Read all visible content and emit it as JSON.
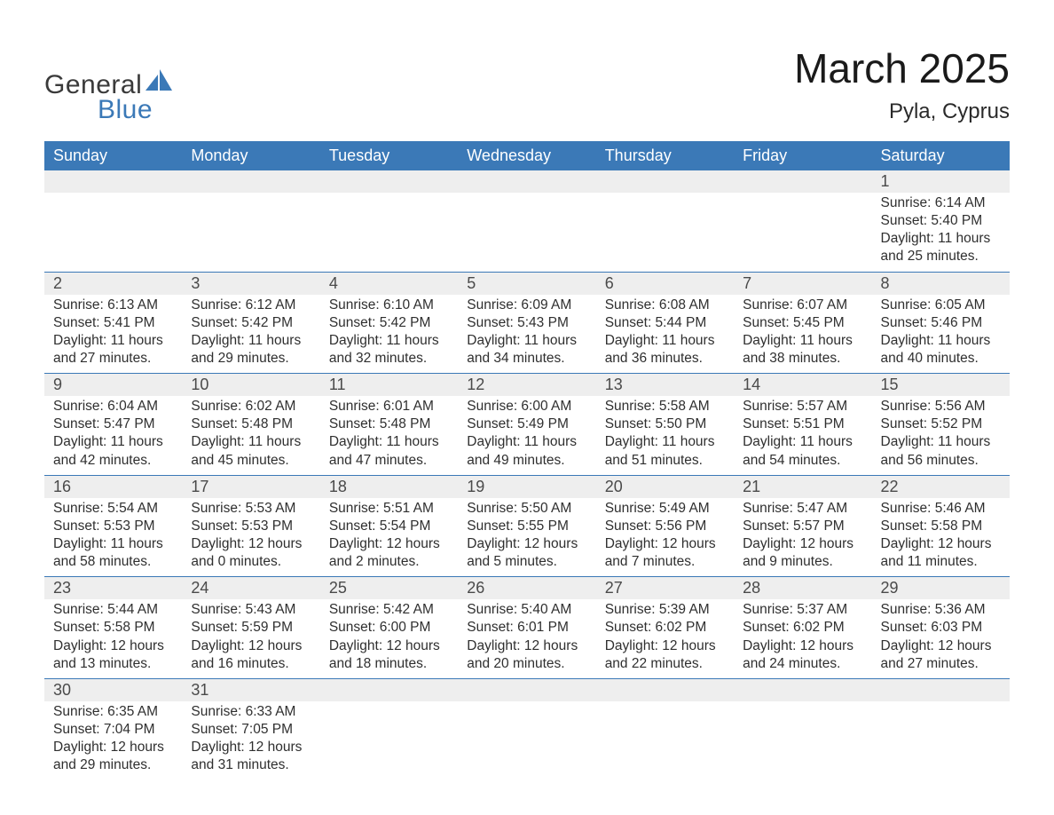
{
  "logo": {
    "general": "General",
    "blue": "Blue",
    "sail_color": "#3b79b7"
  },
  "title": "March 2025",
  "location": "Pyla, Cyprus",
  "colors": {
    "header_bg": "#3b79b7",
    "header_fg": "#ffffff",
    "daynum_bg": "#eeeeee",
    "row_border": "#3b79b7",
    "text": "#2f2f2f"
  },
  "day_headers": [
    "Sunday",
    "Monday",
    "Tuesday",
    "Wednesday",
    "Thursday",
    "Friday",
    "Saturday"
  ],
  "weeks": [
    [
      null,
      null,
      null,
      null,
      null,
      null,
      {
        "n": "1",
        "sunrise": "6:14 AM",
        "sunset": "5:40 PM",
        "dl1": "Daylight: 11 hours",
        "dl2": "and 25 minutes."
      }
    ],
    [
      {
        "n": "2",
        "sunrise": "6:13 AM",
        "sunset": "5:41 PM",
        "dl1": "Daylight: 11 hours",
        "dl2": "and 27 minutes."
      },
      {
        "n": "3",
        "sunrise": "6:12 AM",
        "sunset": "5:42 PM",
        "dl1": "Daylight: 11 hours",
        "dl2": "and 29 minutes."
      },
      {
        "n": "4",
        "sunrise": "6:10 AM",
        "sunset": "5:42 PM",
        "dl1": "Daylight: 11 hours",
        "dl2": "and 32 minutes."
      },
      {
        "n": "5",
        "sunrise": "6:09 AM",
        "sunset": "5:43 PM",
        "dl1": "Daylight: 11 hours",
        "dl2": "and 34 minutes."
      },
      {
        "n": "6",
        "sunrise": "6:08 AM",
        "sunset": "5:44 PM",
        "dl1": "Daylight: 11 hours",
        "dl2": "and 36 minutes."
      },
      {
        "n": "7",
        "sunrise": "6:07 AM",
        "sunset": "5:45 PM",
        "dl1": "Daylight: 11 hours",
        "dl2": "and 38 minutes."
      },
      {
        "n": "8",
        "sunrise": "6:05 AM",
        "sunset": "5:46 PM",
        "dl1": "Daylight: 11 hours",
        "dl2": "and 40 minutes."
      }
    ],
    [
      {
        "n": "9",
        "sunrise": "6:04 AM",
        "sunset": "5:47 PM",
        "dl1": "Daylight: 11 hours",
        "dl2": "and 42 minutes."
      },
      {
        "n": "10",
        "sunrise": "6:02 AM",
        "sunset": "5:48 PM",
        "dl1": "Daylight: 11 hours",
        "dl2": "and 45 minutes."
      },
      {
        "n": "11",
        "sunrise": "6:01 AM",
        "sunset": "5:48 PM",
        "dl1": "Daylight: 11 hours",
        "dl2": "and 47 minutes."
      },
      {
        "n": "12",
        "sunrise": "6:00 AM",
        "sunset": "5:49 PM",
        "dl1": "Daylight: 11 hours",
        "dl2": "and 49 minutes."
      },
      {
        "n": "13",
        "sunrise": "5:58 AM",
        "sunset": "5:50 PM",
        "dl1": "Daylight: 11 hours",
        "dl2": "and 51 minutes."
      },
      {
        "n": "14",
        "sunrise": "5:57 AM",
        "sunset": "5:51 PM",
        "dl1": "Daylight: 11 hours",
        "dl2": "and 54 minutes."
      },
      {
        "n": "15",
        "sunrise": "5:56 AM",
        "sunset": "5:52 PM",
        "dl1": "Daylight: 11 hours",
        "dl2": "and 56 minutes."
      }
    ],
    [
      {
        "n": "16",
        "sunrise": "5:54 AM",
        "sunset": "5:53 PM",
        "dl1": "Daylight: 11 hours",
        "dl2": "and 58 minutes."
      },
      {
        "n": "17",
        "sunrise": "5:53 AM",
        "sunset": "5:53 PM",
        "dl1": "Daylight: 12 hours",
        "dl2": "and 0 minutes."
      },
      {
        "n": "18",
        "sunrise": "5:51 AM",
        "sunset": "5:54 PM",
        "dl1": "Daylight: 12 hours",
        "dl2": "and 2 minutes."
      },
      {
        "n": "19",
        "sunrise": "5:50 AM",
        "sunset": "5:55 PM",
        "dl1": "Daylight: 12 hours",
        "dl2": "and 5 minutes."
      },
      {
        "n": "20",
        "sunrise": "5:49 AM",
        "sunset": "5:56 PM",
        "dl1": "Daylight: 12 hours",
        "dl2": "and 7 minutes."
      },
      {
        "n": "21",
        "sunrise": "5:47 AM",
        "sunset": "5:57 PM",
        "dl1": "Daylight: 12 hours",
        "dl2": "and 9 minutes."
      },
      {
        "n": "22",
        "sunrise": "5:46 AM",
        "sunset": "5:58 PM",
        "dl1": "Daylight: 12 hours",
        "dl2": "and 11 minutes."
      }
    ],
    [
      {
        "n": "23",
        "sunrise": "5:44 AM",
        "sunset": "5:58 PM",
        "dl1": "Daylight: 12 hours",
        "dl2": "and 13 minutes."
      },
      {
        "n": "24",
        "sunrise": "5:43 AM",
        "sunset": "5:59 PM",
        "dl1": "Daylight: 12 hours",
        "dl2": "and 16 minutes."
      },
      {
        "n": "25",
        "sunrise": "5:42 AM",
        "sunset": "6:00 PM",
        "dl1": "Daylight: 12 hours",
        "dl2": "and 18 minutes."
      },
      {
        "n": "26",
        "sunrise": "5:40 AM",
        "sunset": "6:01 PM",
        "dl1": "Daylight: 12 hours",
        "dl2": "and 20 minutes."
      },
      {
        "n": "27",
        "sunrise": "5:39 AM",
        "sunset": "6:02 PM",
        "dl1": "Daylight: 12 hours",
        "dl2": "and 22 minutes."
      },
      {
        "n": "28",
        "sunrise": "5:37 AM",
        "sunset": "6:02 PM",
        "dl1": "Daylight: 12 hours",
        "dl2": "and 24 minutes."
      },
      {
        "n": "29",
        "sunrise": "5:36 AM",
        "sunset": "6:03 PM",
        "dl1": "Daylight: 12 hours",
        "dl2": "and 27 minutes."
      }
    ],
    [
      {
        "n": "30",
        "sunrise": "6:35 AM",
        "sunset": "7:04 PM",
        "dl1": "Daylight: 12 hours",
        "dl2": "and 29 minutes."
      },
      {
        "n": "31",
        "sunrise": "6:33 AM",
        "sunset": "7:05 PM",
        "dl1": "Daylight: 12 hours",
        "dl2": "and 31 minutes."
      },
      null,
      null,
      null,
      null,
      null
    ]
  ],
  "labels": {
    "sunrise": "Sunrise: ",
    "sunset": "Sunset: "
  }
}
